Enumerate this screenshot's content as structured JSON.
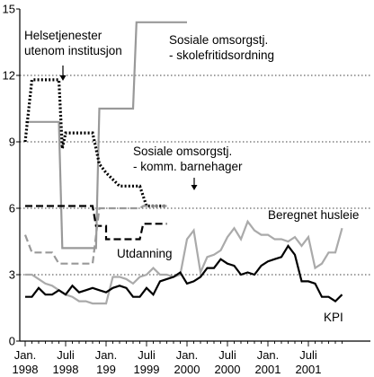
{
  "chart_data": {
    "type": "line",
    "title": "",
    "xlabel": "",
    "ylabel": "",
    "ylim": [
      0,
      15
    ],
    "yticks": [
      0,
      3,
      6,
      9,
      12,
      15
    ],
    "grid": "horizontal dotted lines at 3, 6, 9, 12",
    "xtick_labels": [
      {
        "month": 0,
        "line1": "Jan.",
        "line2": "1998"
      },
      {
        "month": 6,
        "line1": "Juli",
        "line2": "1998"
      },
      {
        "month": 12,
        "line1": "Jan.",
        "line2": "199"
      },
      {
        "month": 18,
        "line1": "Juli",
        "line2": "1999"
      },
      {
        "month": 24,
        "line1": "Jan.",
        "line2": "2000"
      },
      {
        "month": 30,
        "line1": "Juli",
        "line2": "2000"
      },
      {
        "month": 36,
        "line1": "Jan.",
        "line2": "2001"
      },
      {
        "month": 42,
        "line1": "Juli",
        "line2": "2001"
      }
    ],
    "x_unit": "months since Jan. 1998",
    "series": [
      {
        "name": "Sosiale omsorgstj. - skolefritidsordning",
        "color": "#999999",
        "style": "solid",
        "points": [
          [
            0,
            9.9
          ],
          [
            5,
            9.9
          ],
          [
            5.5,
            4.2
          ],
          [
            10.5,
            4.2
          ],
          [
            11,
            10.5
          ],
          [
            16,
            10.5
          ],
          [
            16.5,
            14.4
          ],
          [
            24,
            14.4
          ]
        ]
      },
      {
        "name": "Helsetjenester utenom institusjon",
        "color": "#000000",
        "style": "dotted",
        "points": [
          [
            0,
            9.0
          ],
          [
            1,
            11.8
          ],
          [
            5,
            11.8
          ],
          [
            5.5,
            8.7
          ],
          [
            6,
            9.4
          ],
          [
            10,
            9.4
          ],
          [
            11,
            8.0
          ],
          [
            12,
            7.6
          ],
          [
            14,
            7.0
          ],
          [
            17,
            7.0
          ],
          [
            18,
            6.1
          ],
          [
            21,
            6.1
          ]
        ]
      },
      {
        "name": "Sosiale omsorgstj. - komm. barnehager",
        "color": "#000000",
        "style": "dashed",
        "points": [
          [
            0,
            6.1
          ],
          [
            10,
            6.1
          ],
          [
            10.5,
            5.2
          ],
          [
            12,
            5.2
          ],
          [
            12,
            4.6
          ],
          [
            17,
            4.6
          ],
          [
            17.5,
            5.3
          ],
          [
            21,
            5.3
          ]
        ]
      },
      {
        "name": "Utdanning",
        "color": "#999999",
        "style": "dashed",
        "points": [
          [
            0,
            4.8
          ],
          [
            1,
            4.0
          ],
          [
            4,
            4.0
          ],
          [
            5,
            3.5
          ],
          [
            10,
            3.5
          ],
          [
            11,
            6.0
          ],
          [
            17,
            6.0
          ],
          [
            17.5,
            6.1
          ],
          [
            21,
            6.1
          ]
        ]
      },
      {
        "name": "Beregnet husleie",
        "color": "#aaaaaa",
        "style": "solid",
        "points": [
          [
            0,
            3.0
          ],
          [
            1,
            3.0
          ],
          [
            2,
            2.8
          ],
          [
            3,
            2.6
          ],
          [
            4,
            2.5
          ],
          [
            5,
            2.3
          ],
          [
            6,
            2.1
          ],
          [
            7,
            2.0
          ],
          [
            8,
            1.8
          ],
          [
            9,
            1.8
          ],
          [
            10,
            1.7
          ],
          [
            11,
            1.7
          ],
          [
            12,
            1.7
          ],
          [
            13,
            2.9
          ],
          [
            14,
            2.9
          ],
          [
            15,
            2.8
          ],
          [
            16,
            2.6
          ],
          [
            17,
            2.9
          ],
          [
            18,
            3.0
          ],
          [
            19,
            3.3
          ],
          [
            20,
            3.0
          ],
          [
            21,
            3.0
          ],
          [
            22,
            2.9
          ],
          [
            23,
            3.0
          ],
          [
            24,
            4.6
          ],
          [
            25,
            5.0
          ],
          [
            26,
            3.1
          ],
          [
            27,
            3.8
          ],
          [
            28,
            3.9
          ],
          [
            29,
            4.1
          ],
          [
            30,
            4.7
          ],
          [
            31,
            5.1
          ],
          [
            32,
            4.6
          ],
          [
            33,
            5.4
          ],
          [
            34,
            5.0
          ],
          [
            35,
            4.8
          ],
          [
            36,
            4.8
          ],
          [
            37,
            4.6
          ],
          [
            38,
            4.6
          ],
          [
            39,
            4.5
          ],
          [
            40,
            4.7
          ],
          [
            41,
            4.3
          ],
          [
            42,
            4.7
          ],
          [
            43,
            3.3
          ],
          [
            44,
            3.5
          ],
          [
            45,
            4.0
          ],
          [
            46,
            4.0
          ],
          [
            47,
            5.1
          ]
        ]
      },
      {
        "name": "KPI",
        "color": "#000000",
        "style": "solid",
        "points": [
          [
            0,
            2.0
          ],
          [
            1,
            2.0
          ],
          [
            2,
            2.4
          ],
          [
            3,
            2.1
          ],
          [
            4,
            2.1
          ],
          [
            5,
            2.3
          ],
          [
            6,
            2.1
          ],
          [
            7,
            2.5
          ],
          [
            8,
            2.2
          ],
          [
            9,
            2.3
          ],
          [
            10,
            2.4
          ],
          [
            11,
            2.3
          ],
          [
            12,
            2.2
          ],
          [
            13,
            2.4
          ],
          [
            14,
            2.5
          ],
          [
            15,
            2.4
          ],
          [
            16,
            2.0
          ],
          [
            17,
            2.0
          ],
          [
            18,
            2.4
          ],
          [
            19,
            2.1
          ],
          [
            20,
            2.7
          ],
          [
            21,
            2.8
          ],
          [
            22,
            2.9
          ],
          [
            23,
            3.1
          ],
          [
            24,
            2.6
          ],
          [
            25,
            2.7
          ],
          [
            26,
            2.9
          ],
          [
            27,
            3.3
          ],
          [
            28,
            3.3
          ],
          [
            29,
            3.7
          ],
          [
            30,
            3.5
          ],
          [
            31,
            3.4
          ],
          [
            32,
            3.0
          ],
          [
            33,
            3.1
          ],
          [
            34,
            3.0
          ],
          [
            35,
            3.4
          ],
          [
            36,
            3.6
          ],
          [
            37,
            3.7
          ],
          [
            38,
            3.8
          ],
          [
            39,
            4.3
          ],
          [
            40,
            3.9
          ],
          [
            41,
            2.7
          ],
          [
            42,
            2.7
          ],
          [
            43,
            2.6
          ],
          [
            44,
            2.0
          ],
          [
            45,
            2.0
          ],
          [
            46,
            1.8
          ],
          [
            47,
            2.1
          ]
        ]
      }
    ],
    "annotations": [
      {
        "lines": [
          "Helsetjenester",
          "utenom institusjon"
        ]
      },
      {
        "lines": [
          "Sosiale omsorgstj.",
          "- skolefritidsordning"
        ]
      },
      {
        "lines": [
          "Sosiale omsorgstj.",
          "- komm. barnehager"
        ]
      },
      {
        "lines": [
          "Beregnet husleie"
        ]
      },
      {
        "lines": [
          "Utdanning"
        ]
      },
      {
        "lines": [
          "KPI"
        ]
      }
    ]
  }
}
